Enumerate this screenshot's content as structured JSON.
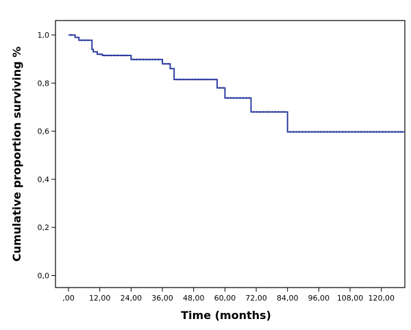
{
  "chart_data": {
    "type": "line",
    "xlabel": "Time (months)",
    "ylabel": "Cumulative proportion surviving %",
    "xlim": [
      -5,
      129
    ],
    "ylim": [
      -0.05,
      1.06
    ],
    "x_ticks": [
      0,
      12,
      24,
      36,
      48,
      60,
      72,
      84,
      96,
      108,
      120
    ],
    "x_tick_labels": [
      ",00",
      "12,00",
      "24,00",
      "36,00",
      "48,00",
      "60,00",
      "72,00",
      "84,00",
      "96,00",
      "108,00",
      "120,00"
    ],
    "y_ticks": [
      0,
      0.2,
      0.4,
      0.6,
      0.8,
      1.0
    ],
    "y_tick_labels": [
      "0,0",
      "0,2",
      "0,4",
      "0,6",
      "0,8",
      "1,0"
    ],
    "line_color": "#2e3ea1",
    "series": [
      {
        "step": "post",
        "x": [
          0,
          2.5,
          4,
          9,
          9.5,
          11,
          13,
          24,
          36,
          39,
          40.5,
          57,
          60,
          70,
          84,
          129
        ],
        "y": [
          1.0,
          0.99,
          0.978,
          0.94,
          0.93,
          0.92,
          0.915,
          0.898,
          0.88,
          0.86,
          0.815,
          0.78,
          0.738,
          0.68,
          0.597,
          0.597
        ]
      }
    ]
  }
}
